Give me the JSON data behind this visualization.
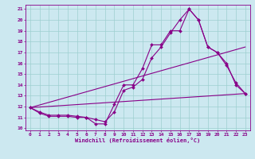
{
  "xlabel": "Windchill (Refroidissement éolien,°C)",
  "bg_color": "#cce8f0",
  "grid_color": "#9dcfcf",
  "line_color": "#880088",
  "xlim": [
    -0.5,
    23.5
  ],
  "ylim": [
    9.8,
    21.4
  ],
  "x_ticks": [
    0,
    1,
    2,
    3,
    4,
    5,
    6,
    7,
    8,
    9,
    10,
    11,
    12,
    13,
    14,
    15,
    16,
    17,
    18,
    19,
    20,
    21,
    22,
    23
  ],
  "y_ticks": [
    10,
    11,
    12,
    13,
    14,
    15,
    16,
    17,
    18,
    19,
    20,
    21
  ],
  "line1": {
    "x": [
      0,
      1,
      2,
      3,
      4,
      5,
      6,
      7,
      8,
      9,
      10,
      11,
      12,
      13,
      14,
      15,
      16,
      17,
      18,
      19,
      20,
      21,
      22,
      23
    ],
    "y": [
      11.9,
      11.4,
      11.1,
      11.1,
      11.1,
      11.0,
      11.0,
      10.4,
      10.4,
      12.2,
      14.0,
      14.0,
      15.5,
      17.7,
      17.7,
      19.0,
      19.0,
      21.0,
      20.0,
      17.5,
      17.0,
      16.0,
      14.0,
      13.2
    ]
  },
  "line2": {
    "x": [
      0,
      1,
      2,
      3,
      4,
      5,
      6,
      7,
      8,
      9,
      10,
      11,
      12,
      13,
      14,
      15,
      16,
      17,
      18,
      19,
      20,
      21,
      22,
      23
    ],
    "y": [
      11.9,
      11.5,
      11.2,
      11.2,
      11.2,
      11.1,
      11.0,
      10.8,
      10.6,
      11.5,
      13.5,
      13.8,
      14.5,
      16.5,
      17.5,
      18.8,
      20.0,
      21.0,
      20.0,
      17.5,
      17.0,
      15.8,
      14.2,
      13.2
    ]
  },
  "trend1": {
    "x": [
      0,
      23
    ],
    "y": [
      11.9,
      17.5
    ]
  },
  "trend2": {
    "x": [
      0,
      23
    ],
    "y": [
      11.9,
      13.2
    ]
  }
}
